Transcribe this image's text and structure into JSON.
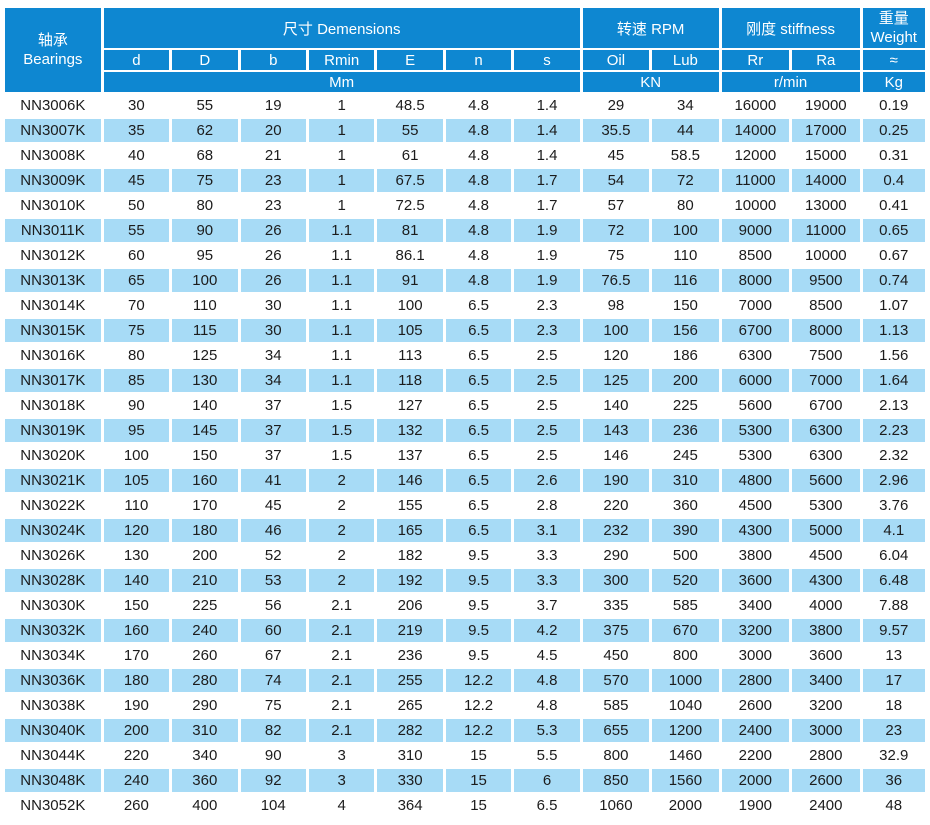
{
  "colors": {
    "header_blue": "#0e87d1",
    "row_alt_blue": "#a7dbf6",
    "row_white": "#ffffff",
    "header_text": "#ffffff",
    "body_text": "#1c1c1c"
  },
  "chart_data": {
    "type": "table",
    "bearings_header": {
      "zh": "轴承",
      "en": "Bearings"
    },
    "column_groups": [
      {
        "label": "尺寸  Demensions",
        "span": 7
      },
      {
        "label": "转速 RPM",
        "span": 2
      },
      {
        "label": "刚度  stiffness",
        "span": 2
      },
      {
        "zh": "重量",
        "en": "Weight",
        "span": 1
      }
    ],
    "columns": [
      "d",
      "D",
      "b",
      "Rmin",
      "E",
      "n",
      "s",
      "Oil",
      "Lub",
      "Rr",
      "Ra",
      "≈"
    ],
    "unit_groups": [
      {
        "label": "Mm",
        "span": 7
      },
      {
        "label": "KN",
        "span": 2
      },
      {
        "label": "r/min",
        "span": 2
      },
      {
        "label": "Kg",
        "span": 1
      }
    ],
    "rows": [
      [
        "NN3006K",
        "30",
        "55",
        "19",
        "1",
        "48.5",
        "4.8",
        "1.4",
        "29",
        "34",
        "16000",
        "19000",
        "0.19"
      ],
      [
        "NN3007K",
        "35",
        "62",
        "20",
        "1",
        "55",
        "4.8",
        "1.4",
        "35.5",
        "44",
        "14000",
        "17000",
        "0.25"
      ],
      [
        "NN3008K",
        "40",
        "68",
        "21",
        "1",
        "61",
        "4.8",
        "1.4",
        "45",
        "58.5",
        "12000",
        "15000",
        "0.31"
      ],
      [
        "NN3009K",
        "45",
        "75",
        "23",
        "1",
        "67.5",
        "4.8",
        "1.7",
        "54",
        "72",
        "11000",
        "14000",
        "0.4"
      ],
      [
        "NN3010K",
        "50",
        "80",
        "23",
        "1",
        "72.5",
        "4.8",
        "1.7",
        "57",
        "80",
        "10000",
        "13000",
        "0.41"
      ],
      [
        "NN3011K",
        "55",
        "90",
        "26",
        "1.1",
        "81",
        "4.8",
        "1.9",
        "72",
        "100",
        "9000",
        "11000",
        "0.65"
      ],
      [
        "NN3012K",
        "60",
        "95",
        "26",
        "1.1",
        "86.1",
        "4.8",
        "1.9",
        "75",
        "110",
        "8500",
        "10000",
        "0.67"
      ],
      [
        "NN3013K",
        "65",
        "100",
        "26",
        "1.1",
        "91",
        "4.8",
        "1.9",
        "76.5",
        "116",
        "8000",
        "9500",
        "0.74"
      ],
      [
        "NN3014K",
        "70",
        "110",
        "30",
        "1.1",
        "100",
        "6.5",
        "2.3",
        "98",
        "150",
        "7000",
        "8500",
        "1.07"
      ],
      [
        "NN3015K",
        "75",
        "115",
        "30",
        "1.1",
        "105",
        "6.5",
        "2.3",
        "100",
        "156",
        "6700",
        "8000",
        "1.13"
      ],
      [
        "NN3016K",
        "80",
        "125",
        "34",
        "1.1",
        "113",
        "6.5",
        "2.5",
        "120",
        "186",
        "6300",
        "7500",
        "1.56"
      ],
      [
        "NN3017K",
        "85",
        "130",
        "34",
        "1.1",
        "118",
        "6.5",
        "2.5",
        "125",
        "200",
        "6000",
        "7000",
        "1.64"
      ],
      [
        "NN3018K",
        "90",
        "140",
        "37",
        "1.5",
        "127",
        "6.5",
        "2.5",
        "140",
        "225",
        "5600",
        "6700",
        "2.13"
      ],
      [
        "NN3019K",
        "95",
        "145",
        "37",
        "1.5",
        "132",
        "6.5",
        "2.5",
        "143",
        "236",
        "5300",
        "6300",
        "2.23"
      ],
      [
        "NN3020K",
        "100",
        "150",
        "37",
        "1.5",
        "137",
        "6.5",
        "2.5",
        "146",
        "245",
        "5300",
        "6300",
        "2.32"
      ],
      [
        "NN3021K",
        "105",
        "160",
        "41",
        "2",
        "146",
        "6.5",
        "2.6",
        "190",
        "310",
        "4800",
        "5600",
        "2.96"
      ],
      [
        "NN3022K",
        "110",
        "170",
        "45",
        "2",
        "155",
        "6.5",
        "2.8",
        "220",
        "360",
        "4500",
        "5300",
        "3.76"
      ],
      [
        "NN3024K",
        "120",
        "180",
        "46",
        "2",
        "165",
        "6.5",
        "3.1",
        "232",
        "390",
        "4300",
        "5000",
        "4.1"
      ],
      [
        "NN3026K",
        "130",
        "200",
        "52",
        "2",
        "182",
        "9.5",
        "3.3",
        "290",
        "500",
        "3800",
        "4500",
        "6.04"
      ],
      [
        "NN3028K",
        "140",
        "210",
        "53",
        "2",
        "192",
        "9.5",
        "3.3",
        "300",
        "520",
        "3600",
        "4300",
        "6.48"
      ],
      [
        "NN3030K",
        "150",
        "225",
        "56",
        "2.1",
        "206",
        "9.5",
        "3.7",
        "335",
        "585",
        "3400",
        "4000",
        "7.88"
      ],
      [
        "NN3032K",
        "160",
        "240",
        "60",
        "2.1",
        "219",
        "9.5",
        "4.2",
        "375",
        "670",
        "3200",
        "3800",
        "9.57"
      ],
      [
        "NN3034K",
        "170",
        "260",
        "67",
        "2.1",
        "236",
        "9.5",
        "4.5",
        "450",
        "800",
        "3000",
        "3600",
        "13"
      ],
      [
        "NN3036K",
        "180",
        "280",
        "74",
        "2.1",
        "255",
        "12.2",
        "4.8",
        "570",
        "1000",
        "2800",
        "3400",
        "17"
      ],
      [
        "NN3038K",
        "190",
        "290",
        "75",
        "2.1",
        "265",
        "12.2",
        "4.8",
        "585",
        "1040",
        "2600",
        "3200",
        "18"
      ],
      [
        "NN3040K",
        "200",
        "310",
        "82",
        "2.1",
        "282",
        "12.2",
        "5.3",
        "655",
        "1200",
        "2400",
        "3000",
        "23"
      ],
      [
        "NN3044K",
        "220",
        "340",
        "90",
        "3",
        "310",
        "15",
        "5.5",
        "800",
        "1460",
        "2200",
        "2800",
        "32.9"
      ],
      [
        "NN3048K",
        "240",
        "360",
        "92",
        "3",
        "330",
        "15",
        "6",
        "850",
        "1560",
        "2000",
        "2600",
        "36"
      ],
      [
        "NN3052K",
        "260",
        "400",
        "104",
        "4",
        "364",
        "15",
        "6.5",
        "1060",
        "2000",
        "1900",
        "2400",
        "48"
      ]
    ]
  }
}
